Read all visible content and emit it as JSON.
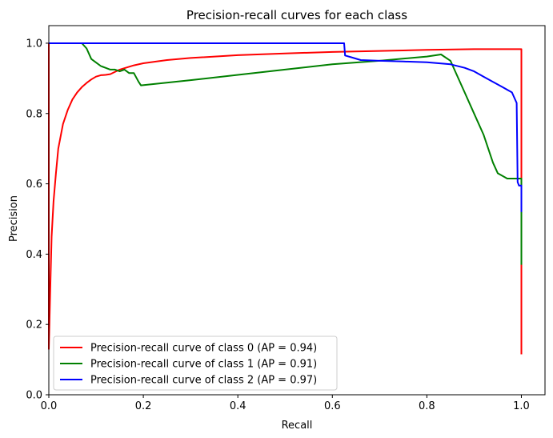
{
  "chart_data": {
    "type": "line",
    "title": "Precision-recall curves for each class",
    "xlabel": "Recall",
    "ylabel": "Precision",
    "xlim": [
      0.0,
      1.05
    ],
    "ylim": [
      0.0,
      1.05
    ],
    "xticks": [
      0.0,
      0.2,
      0.4,
      0.6,
      0.8,
      1.0
    ],
    "yticks": [
      0.0,
      0.2,
      0.4,
      0.6,
      0.8,
      1.0
    ],
    "xtick_labels": [
      "0.0",
      "0.2",
      "0.4",
      "0.6",
      "0.8",
      "1.0"
    ],
    "ytick_labels": [
      "0.0",
      "0.2",
      "0.4",
      "0.6",
      "0.8",
      "1.0"
    ],
    "grid": false,
    "legend_position": "lower-left",
    "series": [
      {
        "name": "Precision-recall curve of class 0 (AP = 0.94)",
        "color": "#ff0000",
        "x": [
          0.0,
          0.0,
          0.003,
          0.006,
          0.01,
          0.015,
          0.02,
          0.03,
          0.04,
          0.05,
          0.06,
          0.07,
          0.08,
          0.09,
          0.1,
          0.11,
          0.12,
          0.13,
          0.15,
          0.18,
          0.2,
          0.25,
          0.3,
          0.4,
          0.5,
          0.6,
          0.7,
          0.8,
          0.9,
          0.95,
          1.0,
          1.0,
          1.0
        ],
        "y": [
          1.0,
          0.13,
          0.3,
          0.45,
          0.55,
          0.63,
          0.7,
          0.77,
          0.81,
          0.84,
          0.86,
          0.875,
          0.887,
          0.897,
          0.905,
          0.909,
          0.91,
          0.912,
          0.925,
          0.937,
          0.943,
          0.952,
          0.958,
          0.966,
          0.971,
          0.975,
          0.978,
          0.981,
          0.983,
          0.983,
          0.983,
          0.36,
          0.115
        ]
      },
      {
        "name": "Precision-recall curve of class 1 (AP = 0.91)",
        "color": "#008000",
        "x": [
          0.0,
          0.07,
          0.08,
          0.09,
          0.1,
          0.11,
          0.12,
          0.13,
          0.14,
          0.15,
          0.16,
          0.17,
          0.18,
          0.19,
          0.195,
          0.3,
          0.4,
          0.5,
          0.6,
          0.7,
          0.8,
          0.83,
          0.85,
          0.86,
          0.88,
          0.9,
          0.92,
          0.94,
          0.95,
          0.97,
          0.99,
          1.0,
          1.0
        ],
        "y": [
          1.0,
          1.0,
          0.985,
          0.955,
          0.945,
          0.935,
          0.93,
          0.925,
          0.925,
          0.92,
          0.925,
          0.915,
          0.915,
          0.89,
          0.88,
          0.895,
          0.91,
          0.925,
          0.94,
          0.95,
          0.962,
          0.968,
          0.95,
          0.92,
          0.86,
          0.8,
          0.74,
          0.66,
          0.63,
          0.615,
          0.615,
          0.615,
          0.37
        ]
      },
      {
        "name": "Precision-recall curve of class 2 (AP = 0.97)",
        "color": "#0000ff",
        "x": [
          0.0,
          0.625,
          0.627,
          0.64,
          0.66,
          0.7,
          0.75,
          0.8,
          0.85,
          0.88,
          0.9,
          0.92,
          0.94,
          0.96,
          0.98,
          0.99,
          0.992,
          0.995,
          1.0,
          1.0
        ],
        "y": [
          1.0,
          1.0,
          0.965,
          0.96,
          0.952,
          0.95,
          0.948,
          0.946,
          0.94,
          0.93,
          0.92,
          0.905,
          0.89,
          0.875,
          0.86,
          0.83,
          0.605,
          0.595,
          0.595,
          0.52
        ]
      }
    ]
  }
}
